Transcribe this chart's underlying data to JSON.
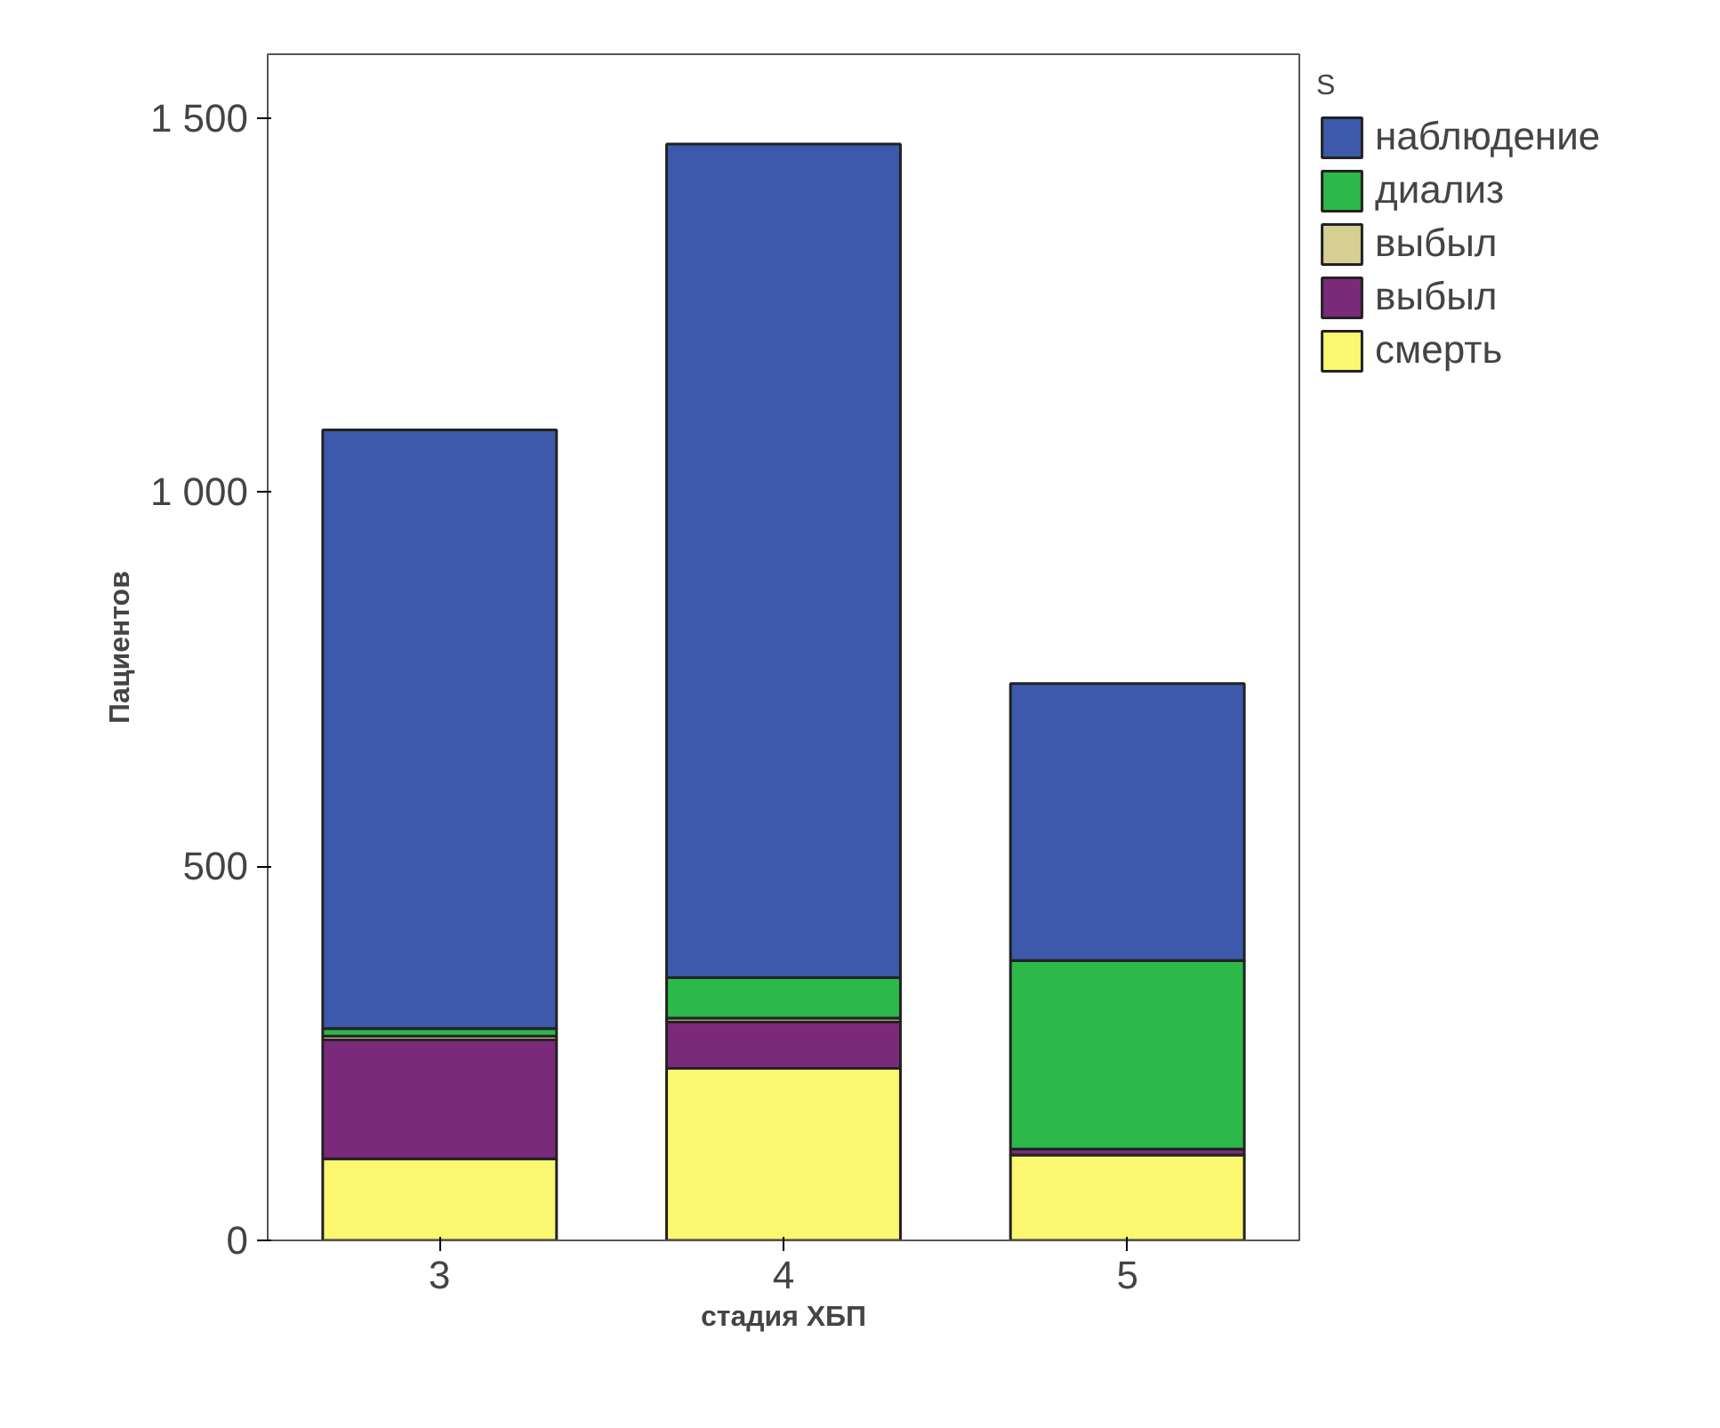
{
  "chart_data": {
    "type": "bar",
    "stacked": true,
    "xlabel": "стадия ХБП",
    "ylabel": "Пациентов",
    "legend_title": "S",
    "legend": "right",
    "categories": [
      "3",
      "4",
      "5"
    ],
    "series": [
      {
        "name": "смерть",
        "color": "#fbf771",
        "values": [
          109,
          230,
          114
        ]
      },
      {
        "name": "выбыл",
        "color": "#7b2a7b",
        "values": [
          159,
          62,
          8
        ]
      },
      {
        "name": "выбыл",
        "color": "#d6cf93",
        "values": [
          5,
          5,
          null
        ]
      },
      {
        "name": "диализ",
        "color": "#2db84a",
        "values": [
          10,
          54,
          252
        ]
      },
      {
        "name": "наблюдение",
        "color": "#3d59ab",
        "values": [
          800,
          1114,
          370
        ]
      }
    ],
    "ylim": [
      0,
      1585
    ],
    "yticks": [
      0,
      500,
      {
        "value": 1000,
        "label": "1 000"
      },
      {
        "value": 1500,
        "label": "1 500"
      }
    ],
    "grid": false
  }
}
